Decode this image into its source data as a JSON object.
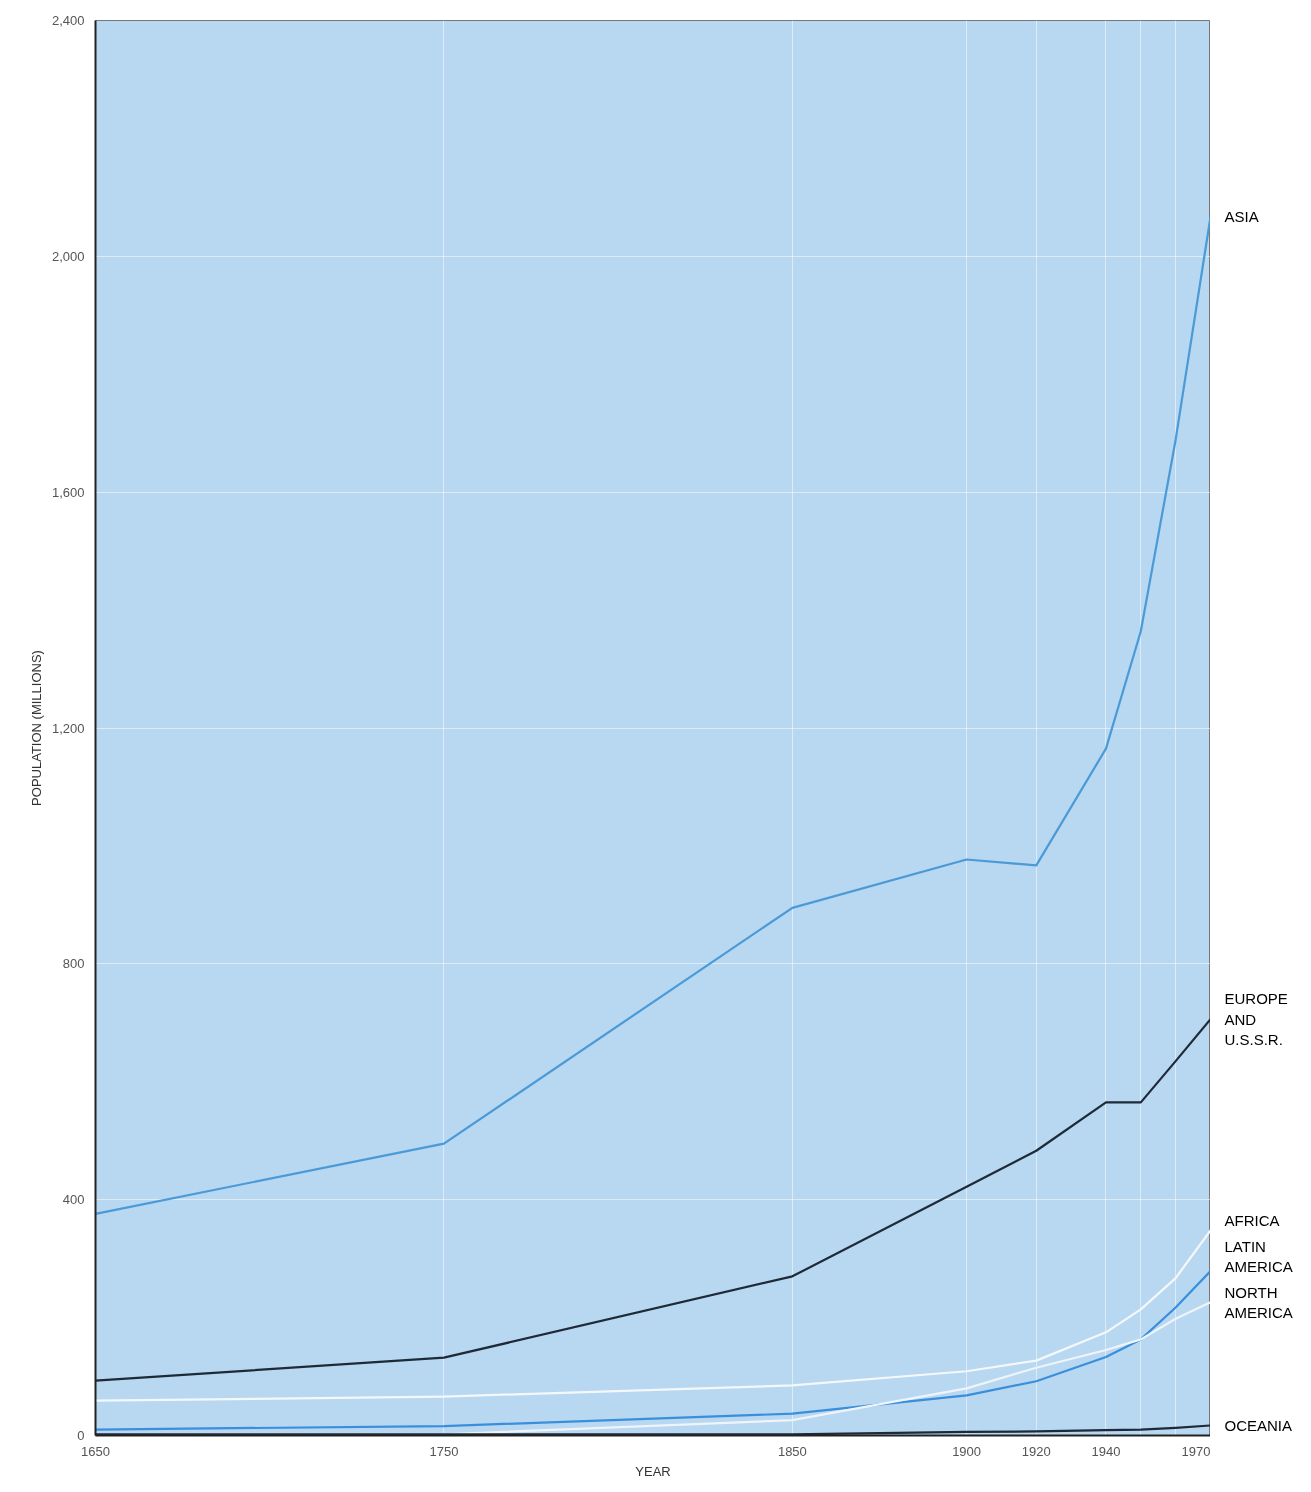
{
  "chart_data": {
    "type": "line",
    "xlabel": "YEAR",
    "ylabel": "POPULATION (MILLIONS)",
    "xlim": [
      1650,
      1970
    ],
    "ylim": [
      0,
      2400
    ],
    "xticks": [
      1650,
      1750,
      1850,
      1900,
      1920,
      1940,
      {
        "value": 1950,
        "label": null
      },
      {
        "value": 1960,
        "label": null
      },
      1970
    ],
    "yticks": [
      0,
      400,
      800,
      {
        "value": 1200,
        "label": "1,200"
      },
      {
        "value": 1600,
        "label": "1,600"
      },
      {
        "value": 2000,
        "label": "2,000"
      },
      {
        "value": 2400,
        "label": "2,400"
      }
    ],
    "grid": true,
    "line_style": "solid",
    "marker": "none",
    "x": [
      1650,
      1750,
      1850,
      1900,
      1920,
      1940,
      1950,
      1960,
      1970
    ],
    "series": [
      {
        "name": "ASIA",
        "color": "#4a9ad8",
        "values": [
          376,
          495,
          895,
          977,
          967,
          1165,
          1364,
          1689,
          2067
        ]
      },
      {
        "name": "EUROPE\nAND\nU.S.S.R.",
        "color": "#1e2a38",
        "values": [
          93,
          132,
          270,
          422,
          483,
          565,
          565,
          635,
          706
        ]
      },
      {
        "name": "AFRICA",
        "color": "#f4f8fb",
        "values": [
          59,
          66,
          85,
          109,
          127,
          175,
          214,
          267,
          348
        ]
      },
      {
        "name": "LATIN\nAMERICA",
        "color": "#3a8fdc",
        "values": [
          10,
          16,
          37,
          68,
          92,
          133,
          163,
          217,
          279
        ]
      },
      {
        "name": "NORTH\nAMERICA",
        "color": "#eef4fa",
        "values": [
          1,
          2,
          26,
          80,
          115,
          145,
          163,
          198,
          226
        ]
      },
      {
        "name": "OCEANIA",
        "color": "#1e2a38",
        "values": [
          2,
          2,
          2,
          6,
          7,
          9,
          10,
          13,
          17
        ]
      }
    ]
  }
}
